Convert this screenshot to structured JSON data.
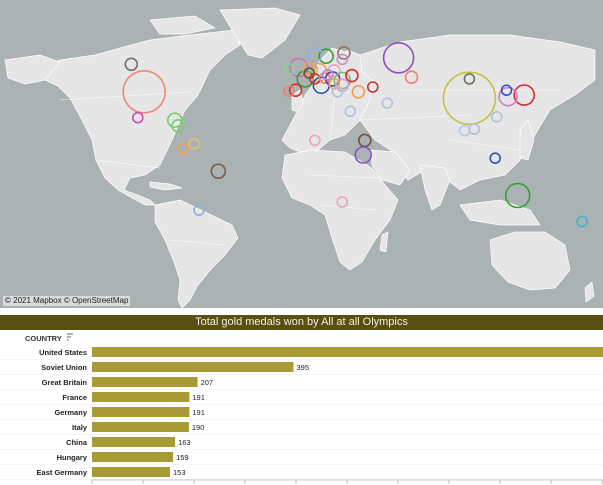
{
  "map": {
    "credit": "© 2021 Mapbox © OpenStreetMap",
    "colors": {
      "ocean": "#aab2b4",
      "land": "#e6e6e6",
      "border": "#ffffff"
    },
    "markers": [
      {
        "name": "united-states",
        "lon": -98,
        "lat": 39,
        "color": "#f08570"
      },
      {
        "name": "canada",
        "lon": -106,
        "lat": 56,
        "color": "#707070"
      },
      {
        "name": "mexico",
        "lon": -102,
        "lat": 23,
        "color": "#d04ab0"
      },
      {
        "name": "cuba",
        "lon": -79,
        "lat": 21.5,
        "color": "#70d070"
      },
      {
        "name": "jamaica",
        "lon": -77,
        "lat": 18,
        "color": "#70d070"
      },
      {
        "name": "colombia",
        "lon": -74,
        "lat": 4,
        "color": "#f0a050"
      },
      {
        "name": "venezuela",
        "lon": -67,
        "lat": 7,
        "color": "#e6c070"
      },
      {
        "name": "brazil",
        "lon": -52,
        "lat": -10,
        "color": "#7a5a4a"
      },
      {
        "name": "argentina",
        "lon": -64,
        "lat": -34,
        "color": "#90b0e0"
      },
      {
        "name": "great-britain",
        "lon": -2,
        "lat": 54,
        "color": "#d070b0"
      },
      {
        "name": "ireland",
        "lon": -8,
        "lat": 53,
        "color": "#90d090"
      },
      {
        "name": "france",
        "lon": 2,
        "lat": 47,
        "color": "#30a030"
      },
      {
        "name": "spain",
        "lon": -4,
        "lat": 40,
        "color": "#d03030"
      },
      {
        "name": "portugal",
        "lon": -8,
        "lat": 39.5,
        "color": "#f08060"
      },
      {
        "name": "germany",
        "lon": 10,
        "lat": 51,
        "color": "#f0a050"
      },
      {
        "name": "italy",
        "lon": 12,
        "lat": 43,
        "color": "#3050b0"
      },
      {
        "name": "netherlands",
        "lon": 5,
        "lat": 52.5,
        "color": "#f0a050"
      },
      {
        "name": "belgium",
        "lon": 4.5,
        "lat": 50.5,
        "color": "#705040"
      },
      {
        "name": "switzerland",
        "lon": 8,
        "lat": 47,
        "color": "#d03030"
      },
      {
        "name": "austria",
        "lon": 14,
        "lat": 47.5,
        "color": "#f08070"
      },
      {
        "name": "sweden",
        "lon": 15,
        "lat": 61,
        "color": "#30a030"
      },
      {
        "name": "norway",
        "lon": 8,
        "lat": 62,
        "color": "#90b0e0"
      },
      {
        "name": "finland",
        "lon": 26,
        "lat": 63,
        "color": "#a07060"
      },
      {
        "name": "poland",
        "lon": 20,
        "lat": 52,
        "color": "#f0a0c0"
      },
      {
        "name": "hungary",
        "lon": 19,
        "lat": 47,
        "color": "#6040a0"
      },
      {
        "name": "czechoslovakia",
        "lon": 16,
        "lat": 49.5,
        "color": "#a090e0"
      },
      {
        "name": "romania",
        "lon": 25,
        "lat": 46,
        "color": "#70c070"
      },
      {
        "name": "bulgaria",
        "lon": 25,
        "lat": 43,
        "color": "#d0a0e0"
      },
      {
        "name": "yugoslavia",
        "lon": 20,
        "lat": 44,
        "color": "#f0a050"
      },
      {
        "name": "greece",
        "lon": 22,
        "lat": 39,
        "color": "#b0c0e0"
      },
      {
        "name": "turkey",
        "lon": 35,
        "lat": 39,
        "color": "#f0a050"
      },
      {
        "name": "ukraine",
        "lon": 31,
        "lat": 49,
        "color": "#d03030"
      },
      {
        "name": "estonia",
        "lon": 25,
        "lat": 59,
        "color": "#c090d0"
      },
      {
        "name": "soviet-union",
        "lon": 60,
        "lat": 60,
        "color": "#9050c0"
      },
      {
        "name": "kazakhstan",
        "lon": 68,
        "lat": 48,
        "color": "#f08070"
      },
      {
        "name": "iran",
        "lon": 53,
        "lat": 32,
        "color": "#b0c0e0"
      },
      {
        "name": "georgia",
        "lon": 44,
        "lat": 42,
        "color": "#d03030"
      },
      {
        "name": "china",
        "lon": 104,
        "lat": 35,
        "color": "#c8c040"
      },
      {
        "name": "mongolia",
        "lon": 104,
        "lat": 47,
        "color": "#707060"
      },
      {
        "name": "japan",
        "lon": 138,
        "lat": 37,
        "color": "#d03030"
      },
      {
        "name": "south-korea",
        "lon": 128,
        "lat": 36,
        "color": "#d080c0"
      },
      {
        "name": "north-korea",
        "lon": 127,
        "lat": 40,
        "color": "#3050d0"
      },
      {
        "name": "taiwan",
        "lon": 121,
        "lat": 23.5,
        "color": "#b0c0e0"
      },
      {
        "name": "thailand",
        "lon": 101,
        "lat": 15,
        "color": "#b0d0e0"
      },
      {
        "name": "vietnam",
        "lon": 107,
        "lat": 16,
        "color": "#b0c0e0"
      },
      {
        "name": "indonesia",
        "lon": 120,
        "lat": -2,
        "color": "#3050b0"
      },
      {
        "name": "egypt",
        "lon": 30,
        "lat": 27,
        "color": "#b0c0e0"
      },
      {
        "name": "ethiopia",
        "lon": 39,
        "lat": 9,
        "color": "#705040"
      },
      {
        "name": "kenya",
        "lon": 38,
        "lat": 0,
        "color": "#9050c0"
      },
      {
        "name": "south-africa",
        "lon": 25,
        "lat": -29,
        "color": "#f0a0c0"
      },
      {
        "name": "nigeria",
        "lon": 8,
        "lat": 9,
        "color": "#f0a0c0"
      },
      {
        "name": "australia",
        "lon": 134,
        "lat": -25,
        "color": "#30a030"
      },
      {
        "name": "new-zealand",
        "lon": 174,
        "lat": -41,
        "color": "#40b0d0"
      }
    ]
  },
  "chart_data": {
    "type": "bar",
    "title": "Total gold medals won by All at all Olympics",
    "column_header": "COUNTRY",
    "categories": [
      "United States",
      "Soviet Union",
      "Great Britain",
      "France",
      "Germany",
      "Italy",
      "China",
      "Hungary",
      "East Germany"
    ],
    "values": [
      1022,
      395,
      207,
      191,
      191,
      190,
      163,
      159,
      153
    ],
    "value_labels": [
      "",
      "395",
      "207",
      "191",
      "191",
      "190",
      "163",
      "159",
      "153"
    ],
    "xlim": [
      0,
      1000
    ],
    "bar_color": "#a89a34",
    "title_bg": "#5a4f12"
  }
}
